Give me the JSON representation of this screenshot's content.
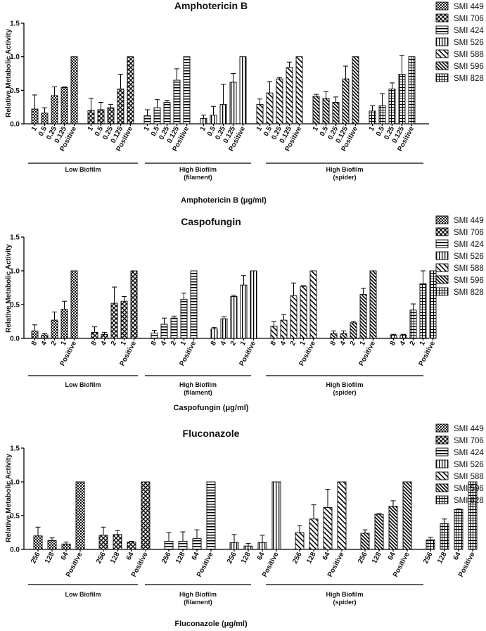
{
  "legend": [
    "SMI 449",
    "SMI 706",
    "SMI 424",
    "SMI 526",
    "SMI 588",
    "SMI 596",
    "SMI 828"
  ],
  "patterns": [
    "pat-check",
    "pat-diamond",
    "pat-hstripe",
    "pat-vstripe",
    "pat-diag",
    "pat-diagdense",
    "pat-grid"
  ],
  "group_labels": [
    {
      "l1": "Low Biofilm",
      "l2": ""
    },
    {
      "l1": "High Biofilm",
      "l2": "(filament)"
    },
    {
      "l1": "High Biofilm",
      "l2": "(spider)"
    }
  ],
  "chart_data": [
    {
      "type": "bar",
      "title": "Amphotericin B",
      "ylabel": "Relative Metabolic Activity",
      "xlabel_prefix": "Amphotericin B (",
      "xlabel_unit": "μg/ml)",
      "ylim": [
        0,
        1.5
      ],
      "yticks": [
        "0.0",
        "0.5",
        "1.0",
        "1.5"
      ],
      "categories": [
        "1",
        "0.5",
        "0.25",
        "0.125",
        "Positive"
      ],
      "series": [
        {
          "name": "SMI 449",
          "values": [
            0.22,
            0.16,
            0.42,
            0.54,
            1.0
          ],
          "errors": [
            0.21,
            0.08,
            0.13,
            0.01,
            0
          ]
        },
        {
          "name": "SMI 706",
          "values": [
            0.2,
            0.21,
            0.24,
            0.52,
            1.0
          ],
          "errors": [
            0.18,
            0.11,
            0.05,
            0.22,
            0
          ]
        },
        {
          "name": "SMI 424",
          "values": [
            0.12,
            0.24,
            0.32,
            0.65,
            1.0
          ],
          "errors": [
            0.09,
            0.12,
            0.03,
            0.17,
            0
          ]
        },
        {
          "name": "SMI 526",
          "values": [
            0.08,
            0.13,
            0.29,
            0.62,
            1.0
          ],
          "errors": [
            0.05,
            0.13,
            0.3,
            0.13,
            0
          ]
        },
        {
          "name": "SMI 588",
          "values": [
            0.29,
            0.46,
            0.67,
            0.84,
            1.0
          ],
          "errors": [
            0.08,
            0.17,
            0.02,
            0.08,
            0
          ]
        },
        {
          "name": "SMI 596",
          "values": [
            0.41,
            0.38,
            0.32,
            0.67,
            1.0
          ],
          "errors": [
            0.03,
            0.1,
            0.08,
            0.19,
            0
          ]
        },
        {
          "name": "SMI 828",
          "values": [
            0.19,
            0.27,
            0.52,
            0.74,
            1.0
          ],
          "errors": [
            0.08,
            0.18,
            0.09,
            0.28,
            0
          ]
        }
      ]
    },
    {
      "type": "bar",
      "title": "Caspofungin",
      "ylabel": "Relative Metabolic Activity",
      "xlabel_prefix": "Caspofungin (",
      "xlabel_unit": "μg/ml)",
      "ylim": [
        0,
        1.5
      ],
      "yticks": [
        "0.0",
        "0.5",
        "1.0",
        "1.5"
      ],
      "categories": [
        "8",
        "4",
        "2",
        "1",
        "Positive"
      ],
      "series": [
        {
          "name": "SMI 449",
          "values": [
            0.11,
            0.05,
            0.27,
            0.43,
            1.0
          ],
          "errors": [
            0.09,
            0.02,
            0.12,
            0.12,
            0
          ]
        },
        {
          "name": "SMI 706",
          "values": [
            0.09,
            0.06,
            0.52,
            0.55,
            1.0
          ],
          "errors": [
            0.08,
            0.03,
            0.24,
            0.07,
            0
          ]
        },
        {
          "name": "SMI 424",
          "values": [
            0.08,
            0.21,
            0.3,
            0.58,
            1.0
          ],
          "errors": [
            0.04,
            0.09,
            0.03,
            0.09,
            0
          ]
        },
        {
          "name": "SMI 526",
          "values": [
            0.14,
            0.29,
            0.62,
            0.79,
            1.0
          ],
          "errors": [
            0.02,
            0.03,
            0.02,
            0.14,
            0
          ]
        },
        {
          "name": "SMI 588",
          "values": [
            0.18,
            0.27,
            0.63,
            0.77,
            1.0
          ],
          "errors": [
            0.07,
            0.08,
            0.19,
            0.01,
            0
          ]
        },
        {
          "name": "SMI 596",
          "values": [
            0.07,
            0.07,
            0.23,
            0.65,
            1.0
          ],
          "errors": [
            0.04,
            0.04,
            0.02,
            0.09,
            0
          ]
        },
        {
          "name": "SMI 828",
          "values": [
            0.05,
            0.05,
            0.42,
            0.81,
            1.0
          ],
          "errors": [
            0.01,
            0.01,
            0.09,
            0.19,
            0
          ]
        }
      ]
    },
    {
      "type": "bar",
      "title": "Fluconazole",
      "ylabel": "Relative Metabolic Activity",
      "xlabel_prefix": "Fluconazole (",
      "xlabel_unit": "μg/ml)",
      "ylim": [
        0,
        1.5
      ],
      "yticks": [
        "0.0",
        "0.5",
        "1.0",
        "1.5"
      ],
      "categories": [
        "256",
        "128",
        "64",
        "Positive"
      ],
      "series": [
        {
          "name": "SMI 449",
          "values": [
            0.2,
            0.13,
            0.08,
            1.0
          ],
          "errors": [
            0.13,
            0.04,
            0.03,
            0
          ]
        },
        {
          "name": "SMI 706",
          "values": [
            0.21,
            0.22,
            0.11,
            1.0
          ],
          "errors": [
            0.12,
            0.06,
            0.01,
            0
          ]
        },
        {
          "name": "SMI 424",
          "values": [
            0.12,
            0.12,
            0.16,
            1.0
          ],
          "errors": [
            0.13,
            0.14,
            0.13,
            0
          ]
        },
        {
          "name": "SMI 526",
          "values": [
            0.1,
            0.05,
            0.1,
            1.0
          ],
          "errors": [
            0.12,
            0.04,
            0.11,
            0
          ]
        },
        {
          "name": "SMI 588",
          "values": [
            0.25,
            0.45,
            0.62,
            1.0
          ],
          "errors": [
            0.1,
            0.21,
            0.27,
            0
          ]
        },
        {
          "name": "SMI 596",
          "values": [
            0.24,
            0.52,
            0.64,
            1.0
          ],
          "errors": [
            0.05,
            0.01,
            0.08,
            0
          ]
        },
        {
          "name": "SMI 828",
          "values": [
            0.14,
            0.38,
            0.59,
            1.0
          ],
          "errors": [
            0.04,
            0.07,
            0.01,
            0
          ]
        }
      ]
    }
  ]
}
